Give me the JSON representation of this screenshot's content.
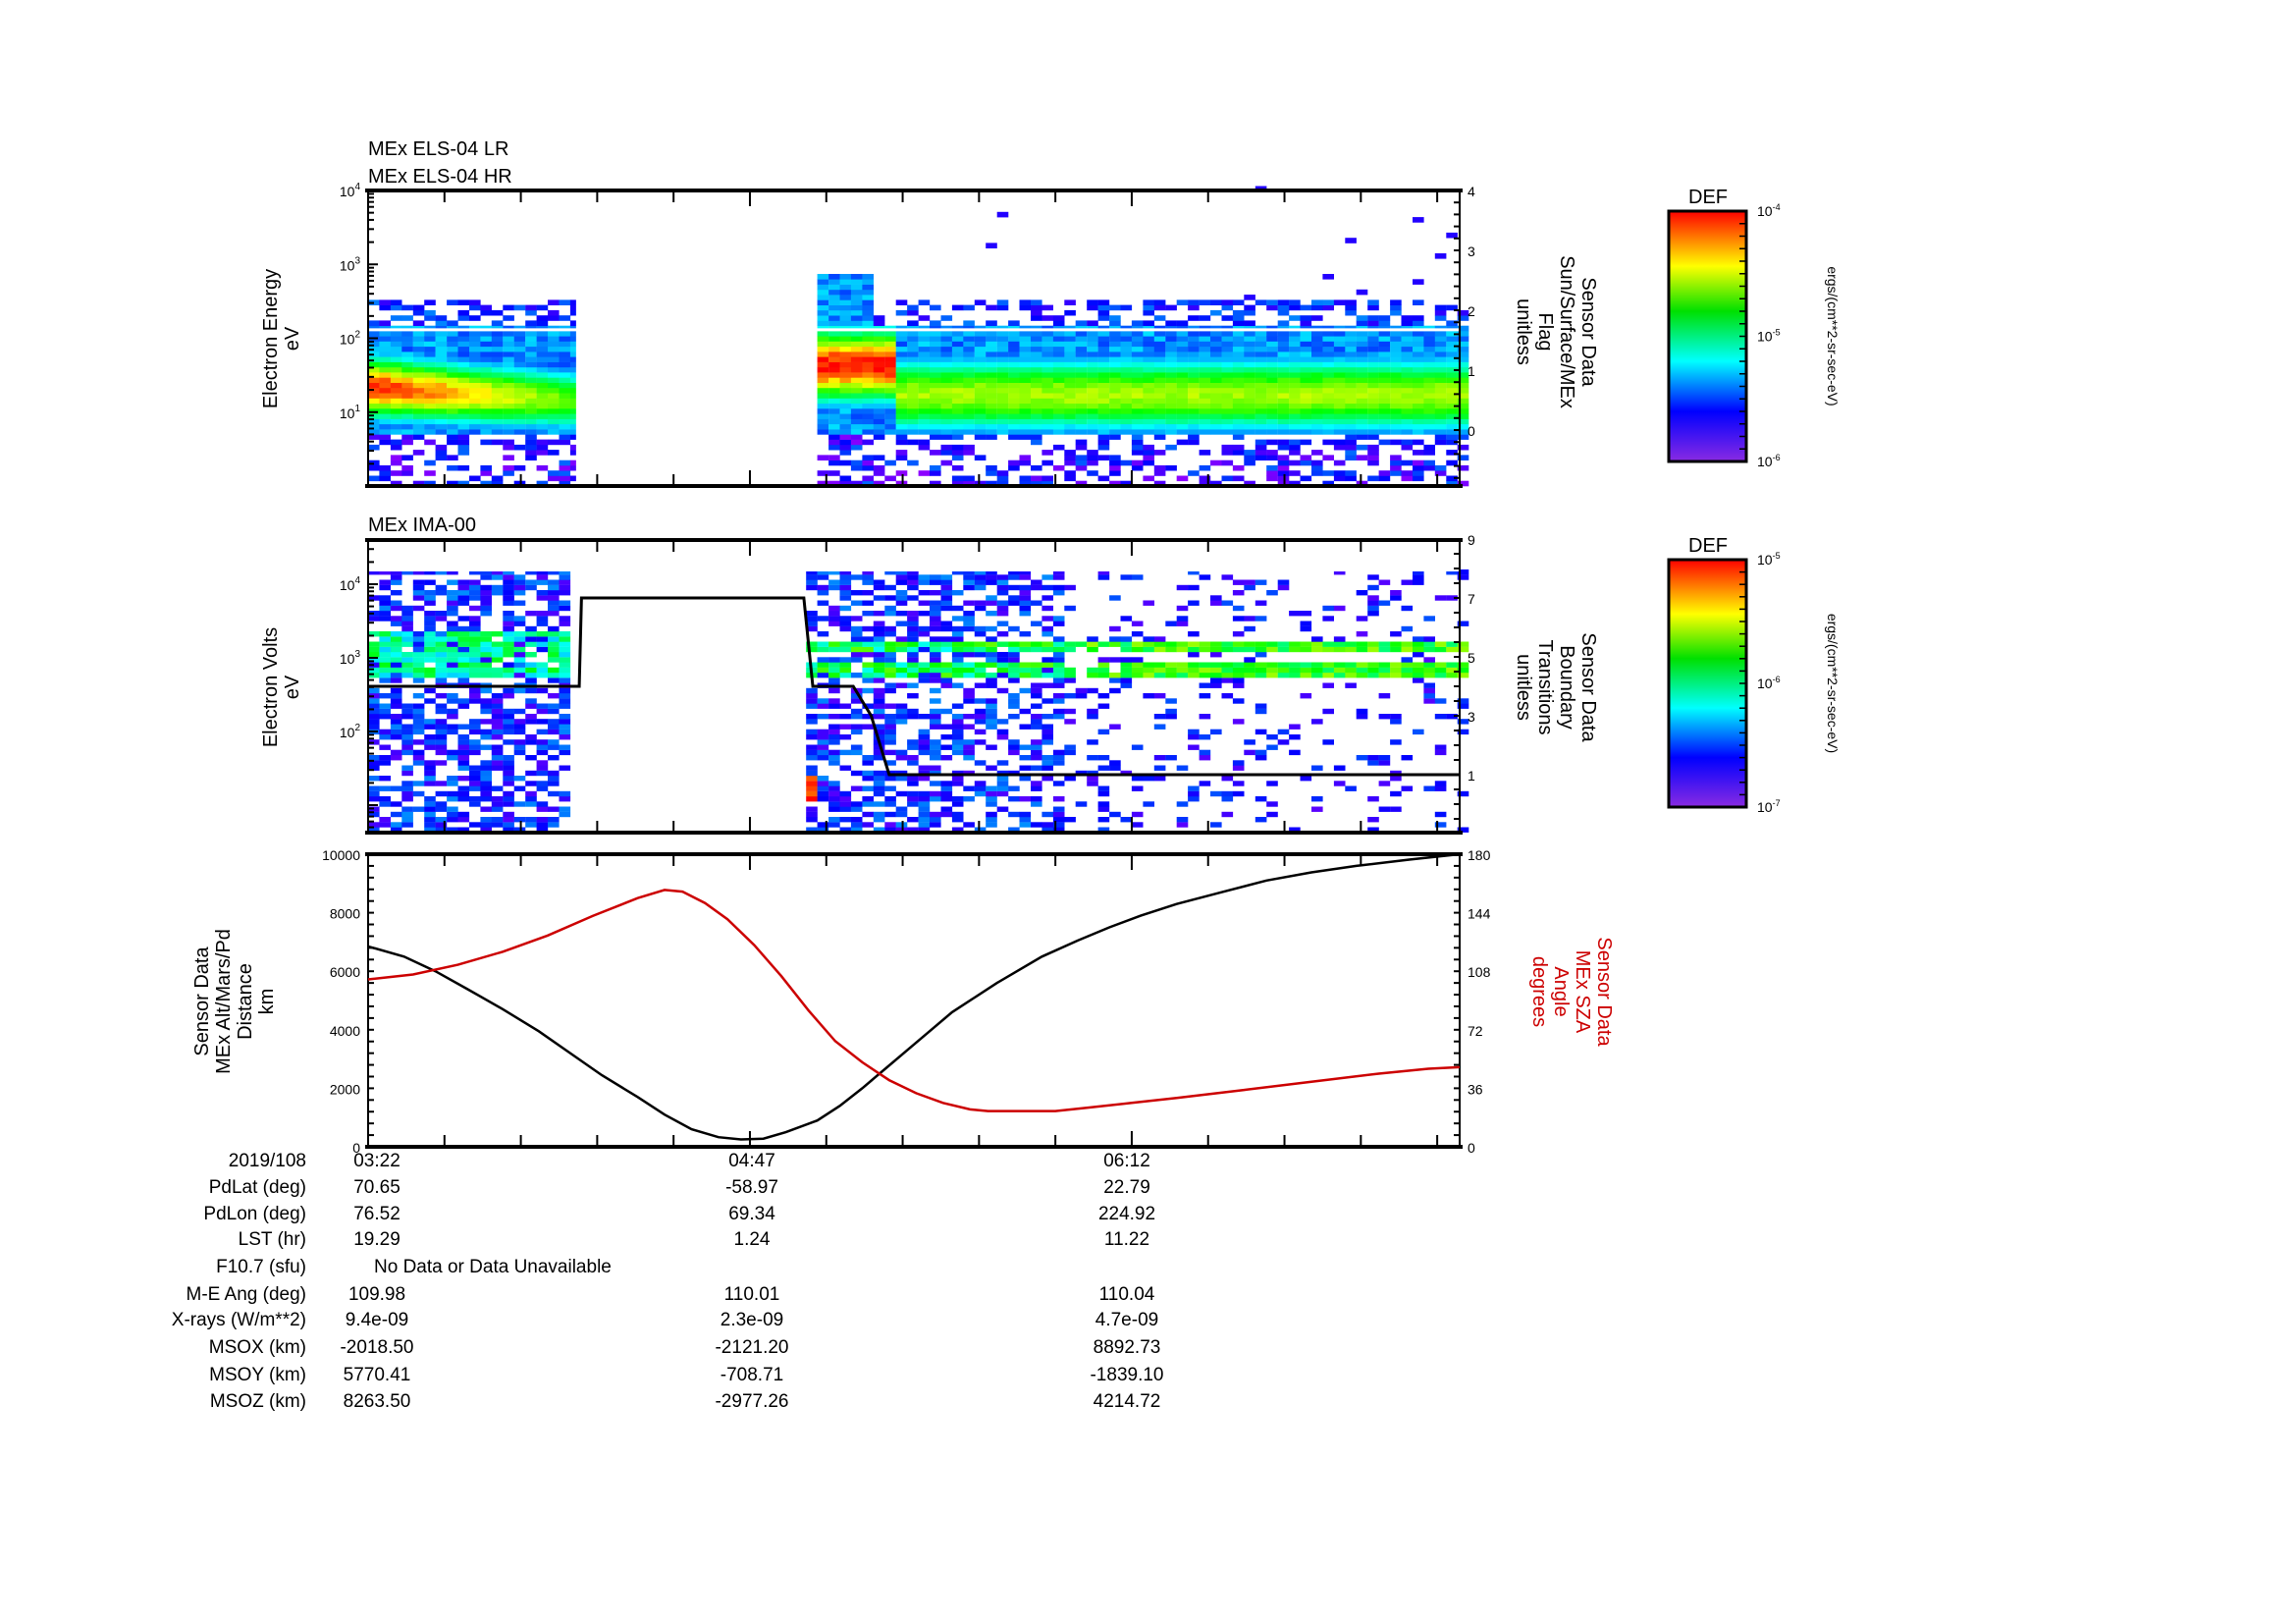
{
  "chart_data": [
    {
      "type": "heatmap",
      "title_lines": [
        "MEx ELS-04 LR",
        "MEx ELS-04 HR"
      ],
      "ylabel": [
        "Electron Energy",
        "eV"
      ],
      "yscale": "log",
      "ylim_log10": [
        0,
        4
      ],
      "yticks": [
        {
          "b": "10",
          "e": "4",
          "v": 4
        },
        {
          "b": "10",
          "e": "3",
          "v": 3
        },
        {
          "b": "10",
          "e": "2",
          "v": 2
        },
        {
          "b": "10",
          "e": "1",
          "v": 1
        }
      ],
      "y2label": [
        "Sensor Data",
        "Sun/Surface/MEx",
        "Flag",
        "unitless"
      ],
      "y2lim": [
        -0.9,
        4
      ],
      "y2ticks": [
        "4",
        "3",
        "2",
        "1",
        "0"
      ],
      "x_minutes_range": [
        0,
        243
      ],
      "data_segments": [
        {
          "t_start": 0,
          "t_end": 46,
          "peak_log_ev": 1.3,
          "peak_level": 1.0,
          "end_level": 0.64
        },
        {
          "t_start": 98,
          "t_end": 117,
          "peak_log_ev": 1.55,
          "peak_level": 1.0
        },
        {
          "t_start": 117,
          "t_end": 243,
          "peak_log_ev": 1.2,
          "peak_level": 0.72
        }
      ],
      "reference_line_ev": 130,
      "colorbar": {
        "title": "DEF",
        "ticks": [
          {
            "b": "10",
            "e": "-4"
          },
          {
            "b": "10",
            "e": "-5"
          },
          {
            "b": "10",
            "e": "-6"
          }
        ],
        "units": "ergs/(cm**2-sr-sec-eV)"
      }
    },
    {
      "type": "heatmap",
      "title": "MEx IMA-00",
      "ylabel": [
        "Electron Volts",
        "eV"
      ],
      "yscale": "log",
      "ylim_log10": [
        0.63,
        4.6
      ],
      "yticks": [
        {
          "b": "10",
          "e": "4",
          "v": 4
        },
        {
          "b": "10",
          "e": "3",
          "v": 3
        },
        {
          "b": "10",
          "e": "2",
          "v": 2
        }
      ],
      "y2label": [
        "Sensor Data",
        "Boundary",
        "Transitions",
        "unitless"
      ],
      "y2lim": [
        -1,
        9
      ],
      "y2ticks": [
        "9",
        "7",
        "5",
        "3",
        "1"
      ],
      "data_segments": [
        {
          "t_start": 0,
          "t_end": 43,
          "density": "dense"
        },
        {
          "t_start": 97,
          "t_end": 153,
          "density": "dense"
        },
        {
          "t_start": 153,
          "t_end": 243,
          "density": "sparse",
          "bands_log_ev": [
            3.12,
            2.8
          ]
        }
      ],
      "boundary_line": [
        [
          0,
          4
        ],
        [
          47,
          4
        ],
        [
          47.5,
          7
        ],
        [
          97,
          7
        ],
        [
          99,
          4
        ],
        [
          108,
          4
        ],
        [
          112,
          3
        ],
        [
          116,
          1
        ],
        [
          243,
          1
        ]
      ],
      "colorbar": {
        "title": "DEF",
        "ticks": [
          {
            "b": "10",
            "e": "-5"
          },
          {
            "b": "10",
            "e": "-6"
          },
          {
            "b": "10",
            "e": "-7"
          }
        ],
        "units": "ergs/(cm**2-sr-sec-eV)"
      }
    },
    {
      "type": "line",
      "ylabel": [
        "Sensor Data",
        "MEx Alt/Mars/Pd",
        "Distance",
        "km"
      ],
      "ylim": [
        0,
        10000
      ],
      "yticks": [
        "10000",
        "8000",
        "6000",
        "4000",
        "2000",
        "0"
      ],
      "y2label": [
        "Sensor Data",
        "MEx SZA",
        "Angle",
        "degrees"
      ],
      "y2lim": [
        0,
        180
      ],
      "y2ticks": [
        "180",
        "144",
        "108",
        "72",
        "36",
        "0"
      ],
      "series": [
        {
          "name": "Altitude (km)",
          "color": "#000000",
          "axis": "left",
          "points": [
            [
              0,
              6850
            ],
            [
              8,
              6500
            ],
            [
              15,
              6000
            ],
            [
              22,
              5400
            ],
            [
              30,
              4700
            ],
            [
              38,
              3950
            ],
            [
              45,
              3200
            ],
            [
              52,
              2450
            ],
            [
              60,
              1700
            ],
            [
              66,
              1100
            ],
            [
              72,
              600
            ],
            [
              78,
              330
            ],
            [
              83,
              250
            ],
            [
              88,
              280
            ],
            [
              93,
              500
            ],
            [
              100,
              900
            ],
            [
              105,
              1400
            ],
            [
              110,
              2000
            ],
            [
              115,
              2650
            ],
            [
              120,
              3300
            ],
            [
              125,
              3950
            ],
            [
              130,
              4600
            ],
            [
              135,
              5100
            ],
            [
              140,
              5600
            ],
            [
              150,
              6500
            ],
            [
              158,
              7050
            ],
            [
              165,
              7500
            ],
            [
              172,
              7900
            ],
            [
              180,
              8300
            ],
            [
              190,
              8700
            ],
            [
              200,
              9100
            ],
            [
              210,
              9380
            ],
            [
              220,
              9600
            ],
            [
              232,
              9820
            ],
            [
              243,
              10000
            ]
          ]
        },
        {
          "name": "SZA (deg)",
          "color": "#cc0000",
          "axis": "right",
          "points": [
            [
              0,
              103
            ],
            [
              10,
              106
            ],
            [
              20,
              112
            ],
            [
              30,
              120
            ],
            [
              40,
              130
            ],
            [
              50,
              142
            ],
            [
              60,
              153
            ],
            [
              66,
              158
            ],
            [
              70,
              157
            ],
            [
              75,
              150
            ],
            [
              80,
              140
            ],
            [
              86,
              124
            ],
            [
              92,
              105
            ],
            [
              98,
              84
            ],
            [
              104,
              65
            ],
            [
              110,
              52
            ],
            [
              116,
              41
            ],
            [
              122,
              33
            ],
            [
              128,
              27
            ],
            [
              134,
              23
            ],
            [
              138,
              22
            ],
            [
              153,
              22
            ],
            [
              160,
              24
            ],
            [
              170,
              27
            ],
            [
              180,
              30
            ],
            [
              195,
              35
            ],
            [
              210,
              40
            ],
            [
              225,
              45
            ],
            [
              236,
              48
            ],
            [
              243,
              49
            ]
          ]
        }
      ]
    }
  ],
  "time_labels": [
    "03:22",
    "04:47",
    "06:12"
  ],
  "ephemeris": [
    {
      "label": "2019/108",
      "values": [
        "03:22",
        "04:47",
        "06:12"
      ]
    },
    {
      "label": "PdLat (deg)",
      "values": [
        "70.65",
        "-58.97",
        "22.79"
      ]
    },
    {
      "label": "PdLon (deg)",
      "values": [
        "76.52",
        "69.34",
        "224.92"
      ]
    },
    {
      "label": "LST (hr)",
      "values": [
        "19.29",
        "1.24",
        "11.22"
      ]
    },
    {
      "label": "F10.7 (sfu)",
      "note": "No Data or Data Unavailable"
    },
    {
      "label": "M-E Ang (deg)",
      "values": [
        "109.98",
        "110.01",
        "110.04"
      ]
    },
    {
      "label": "X-rays (W/m**2)",
      "values": [
        "9.4e-09",
        "2.3e-09",
        "4.7e-09"
      ]
    },
    {
      "label": "MSOX (km)",
      "values": [
        "-2018.50",
        "-2121.20",
        "8892.73"
      ]
    },
    {
      "label": "MSOY (km)",
      "values": [
        "5770.41",
        "-708.71",
        "-1839.10"
      ]
    },
    {
      "label": "MSOZ (km)",
      "values": [
        "8263.50",
        "-2977.26",
        "4214.72"
      ]
    }
  ]
}
